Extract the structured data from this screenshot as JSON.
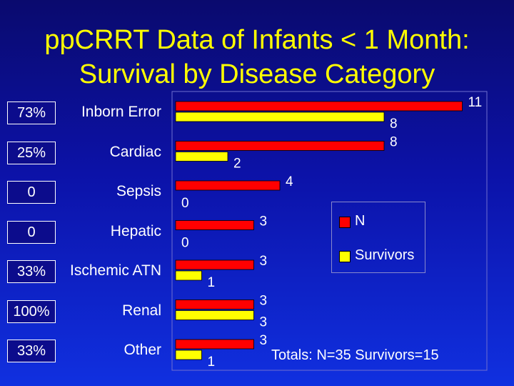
{
  "title_line1": "ppCRRT Data of Infants < 1 Month:",
  "title_line2": "Survival by Disease Category",
  "chart_data": {
    "type": "bar",
    "orientation": "horizontal",
    "categories": [
      "Inborn Error",
      "Cardiac",
      "Sepsis",
      "Hepatic",
      "Ischemic ATN",
      "Renal",
      "Other"
    ],
    "series": [
      {
        "name": "N",
        "color": "#ff0000",
        "values": [
          11,
          8,
          4,
          3,
          3,
          3,
          3
        ]
      },
      {
        "name": "Survivors",
        "color": "#ffff00",
        "values": [
          8,
          2,
          0,
          0,
          1,
          3,
          1
        ]
      }
    ],
    "percent_survival": [
      "73%",
      "25%",
      "0",
      "0",
      "33%",
      "100%",
      "33%"
    ],
    "xlim": [
      0,
      11
    ],
    "legend_position": "right"
  },
  "legend": {
    "n_label": "N",
    "survivors_label": "Survivors"
  },
  "totals": "Totals: N=35  Survivors=15"
}
